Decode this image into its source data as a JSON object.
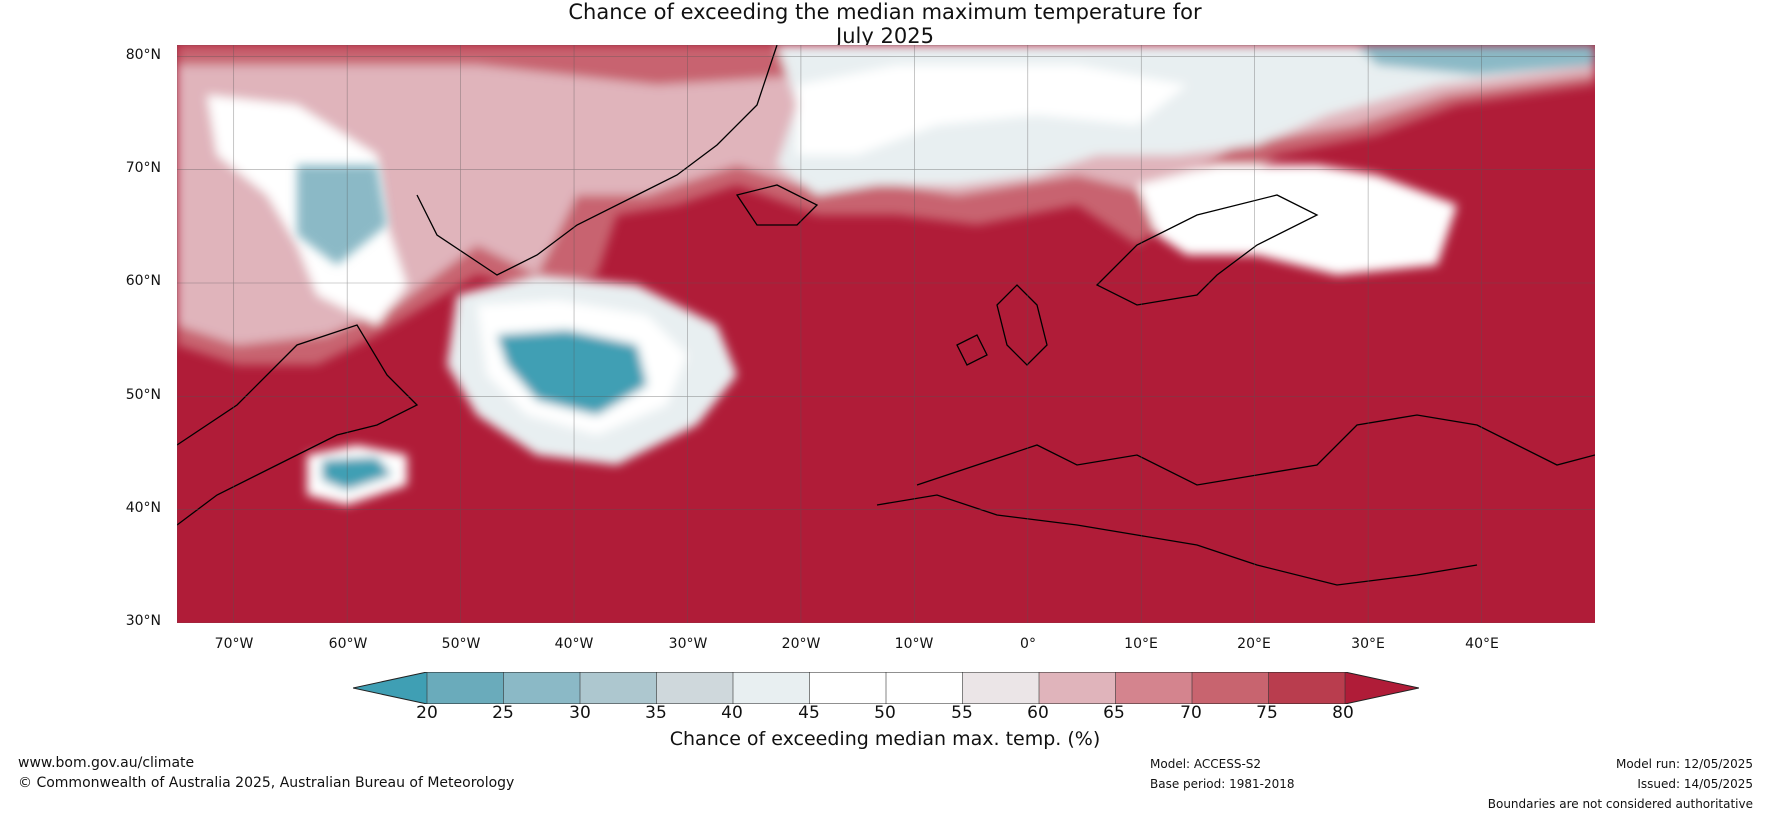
{
  "title_line1": "Chance of exceeding the median maximum temperature for",
  "title_line2": "July 2025",
  "map": {
    "projection": "plate-carree",
    "lon_range": [
      -75,
      50
    ],
    "lat_range": [
      30,
      81
    ],
    "lat_ticks": [
      "80°N",
      "70°N",
      "60°N",
      "50°N",
      "40°N",
      "30°N"
    ],
    "lon_ticks": [
      "70°W",
      "60°W",
      "50°W",
      "40°W",
      "30°W",
      "20°W",
      "10°W",
      "0°",
      "10°E",
      "20°E",
      "30°E",
      "40°E"
    ]
  },
  "colorbar": {
    "ticks": [
      "20",
      "25",
      "30",
      "35",
      "40",
      "45",
      "50",
      "55",
      "60",
      "65",
      "70",
      "75",
      "80"
    ],
    "colors": [
      "#3f9fb4",
      "#6aabbb",
      "#8bb9c6",
      "#adc7cf",
      "#cfd8dc",
      "#e8eff1",
      "#ffffff",
      "#ffffff",
      "#ebe5e7",
      "#e0b4bb",
      "#d4848e",
      "#c8646f",
      "#b93d4e",
      "#b01c38"
    ],
    "label": "Chance of exceeding median max. temp. (%)"
  },
  "footer": {
    "website": "www.bom.gov.au/climate",
    "copyright": "© Commonwealth of Australia 2025, Australian Bureau of Meteorology",
    "model": "Model: ACCESS-S2",
    "base_period": "Base period: 1981-2018",
    "model_run": "Model run: 12/05/2025",
    "issued": "Issued: 14/05/2025",
    "disclaimer": "Boundaries are not considered authoritative"
  }
}
